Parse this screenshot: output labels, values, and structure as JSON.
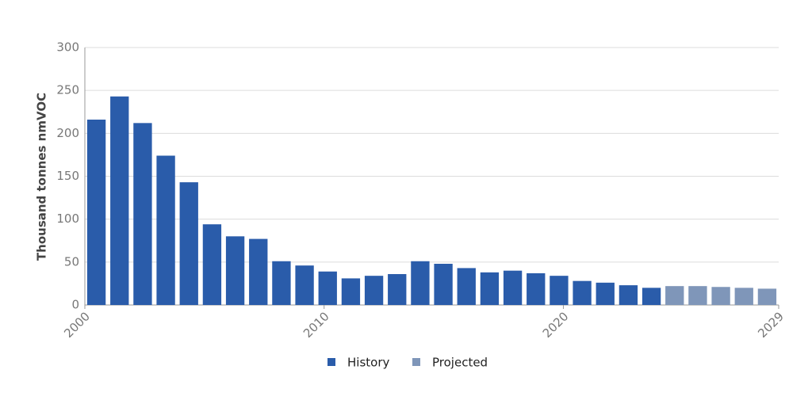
{
  "chart_data": {
    "type": "bar",
    "y_label": "Thousand tonnes nmVOC",
    "categories": [
      "2000",
      null,
      null,
      null,
      null,
      null,
      null,
      null,
      null,
      null,
      "2010",
      null,
      null,
      null,
      null,
      null,
      null,
      null,
      null,
      null,
      "2020",
      null,
      null,
      null,
      null,
      null,
      null,
      null,
      null,
      "2029"
    ],
    "series": [
      {
        "name": "History",
        "color": "#2a5caa",
        "values": [
          216,
          243,
          212,
          174,
          143,
          94,
          80,
          77,
          51,
          46,
          39,
          31,
          34,
          36,
          51,
          48,
          43,
          38,
          40,
          37,
          34,
          28,
          26,
          23,
          20,
          null,
          null,
          null,
          null,
          null
        ]
      },
      {
        "name": "Projected",
        "color": "#7f96b9",
        "values": [
          null,
          null,
          null,
          null,
          null,
          null,
          null,
          null,
          null,
          null,
          null,
          null,
          null,
          null,
          null,
          null,
          null,
          null,
          null,
          null,
          null,
          null,
          null,
          null,
          null,
          22,
          22,
          21,
          20,
          19
        ]
      }
    ],
    "ylim": [
      0,
      300
    ],
    "yticks": [
      0,
      50,
      100,
      150,
      200,
      250,
      300
    ],
    "grid": true
  }
}
